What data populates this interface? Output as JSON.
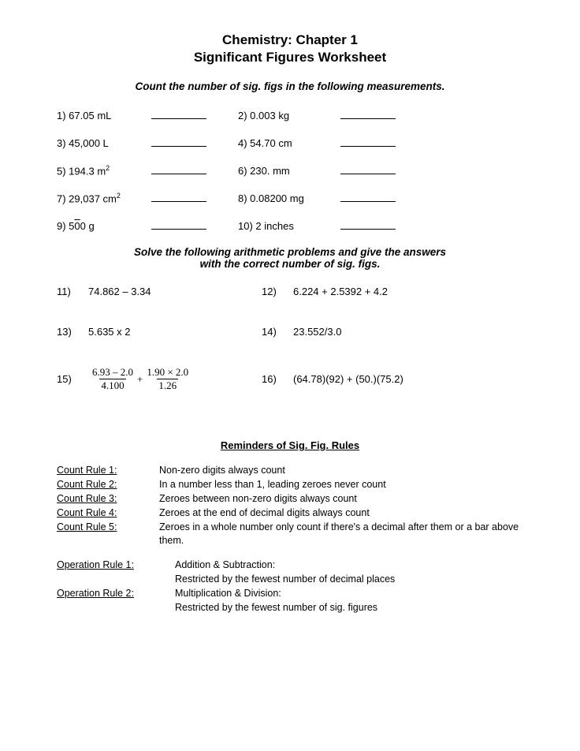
{
  "title_line1": "Chemistry: Chapter 1",
  "title_line2": "Significant Figures Worksheet",
  "instruction1": "Count the number of sig. figs in the following measurements.",
  "counting": [
    {
      "ln": "1) 67.05 mL",
      "rn": "2) 0.003 kg"
    },
    {
      "ln": "3) 45,000 L",
      "rn": "4) 54.70 cm"
    },
    {
      "ln": "5) 194.3 m",
      "lsup": "2",
      "rn": "6) 230. mm"
    },
    {
      "ln": "7) 29,037 cm",
      "lsup": "2",
      "rn": "8) 0.08200 mg"
    },
    {
      "ln_pre": "9) 5",
      "ln_obar": "0",
      "ln_post": "0 g",
      "rn": "10) 2 inches"
    }
  ],
  "instruction2a": "Solve the following arithmetic problems and give the answers",
  "instruction2b": "with the correct number of sig. figs.",
  "arith": {
    "r1": {
      "ln": "11)",
      "le": "74.862 – 3.34",
      "rn": "12)",
      "re": "6.224 + 2.5392 + 4.2"
    },
    "r2": {
      "ln": "13)",
      "le": "5.635 x 2",
      "rn": "14)",
      "re": "23.552/3.0"
    },
    "r3": {
      "ln": "15)",
      "f1n": "6.93 – 2.0",
      "f1d": "4.100",
      "plus": "+",
      "f2n": "1.90 × 2.0",
      "f2d": "1.26",
      "rn": "16)",
      "re": "(64.78)(92) + (50.)(75.2)"
    }
  },
  "reminders_title": "Reminders of Sig. Fig. Rules",
  "count_rules": [
    {
      "label": "Count Rule 1:",
      "text": "Non-zero digits always count"
    },
    {
      "label": "Count Rule 2:",
      "text": "In a number less than 1, leading zeroes never count"
    },
    {
      "label": "Count Rule 3:",
      "text": "Zeroes between non-zero digits always count"
    },
    {
      "label": "Count Rule 4:",
      "text": "Zeroes at the end of decimal digits always count"
    },
    {
      "label": "Count Rule 5:",
      "text": "Zeroes in a whole number only count if there's a decimal after them or a bar above them."
    }
  ],
  "op_rules": [
    {
      "label": "Operation Rule 1:",
      "text1": "Addition & Subtraction:",
      "text2": "Restricted by the fewest number of decimal places"
    },
    {
      "label": "Operation Rule 2:",
      "text1": "Multiplication & Division:",
      "text2": "Restricted by the fewest number of sig. figures"
    }
  ]
}
